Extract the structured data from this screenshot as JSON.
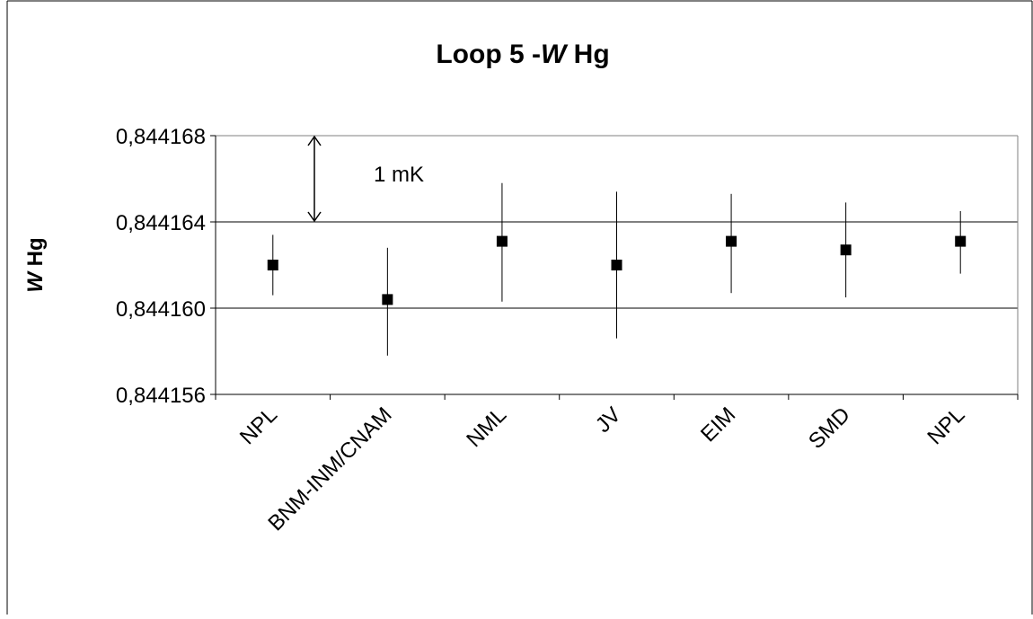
{
  "chart_data": {
    "type": "scatter",
    "title_main": "Loop 5 -",
    "title_italic": "W",
    "title_rest": " Hg",
    "ylabel_italic": "W",
    "ylabel_rest": " Hg",
    "xlabel": "",
    "categories": [
      "NPL",
      "BNM-INM/CNAM",
      "NML",
      "JV",
      "EIM",
      "SMD",
      "NPL"
    ],
    "values": [
      0.844162,
      0.8441604,
      0.8441631,
      0.844162,
      0.8441631,
      0.8441627,
      0.8441631
    ],
    "error_low": [
      0.8441606,
      0.8441578,
      0.8441603,
      0.8441586,
      0.8441607,
      0.8441605,
      0.8441616
    ],
    "error_high": [
      0.8441634,
      0.8441628,
      0.8441658,
      0.8441654,
      0.8441653,
      0.8441649,
      0.8441645
    ],
    "ylim": [
      0.844156,
      0.844168
    ],
    "yticks": [
      0.844156,
      0.84416,
      0.844164,
      0.844168
    ],
    "ytick_labels": [
      "0,844156",
      "0,844160",
      "0,844164",
      "0,844168"
    ],
    "grid": true,
    "annotation": {
      "text": "1 mK",
      "from": 0.844164,
      "to": 0.844168
    },
    "colors": {
      "marker": "#000000",
      "grid": "#000000",
      "plot_border": "#808080"
    }
  }
}
